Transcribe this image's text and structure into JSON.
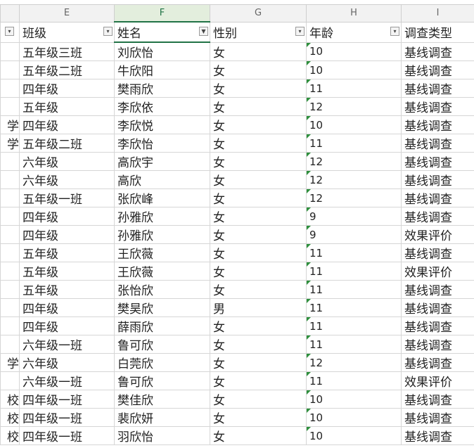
{
  "columns": [
    "E",
    "F",
    "G",
    "H",
    "I"
  ],
  "table": {
    "header": [
      "班级",
      "姓名",
      "性别",
      "年龄",
      "调查类型"
    ],
    "rows": [
      {
        "cells": [
          "五年级三班",
          "刘欣怡",
          "女",
          10,
          "基线调查"
        ]
      },
      {
        "cells": [
          "五年级二班",
          "牛欣阳",
          "女",
          10,
          "基线调查"
        ]
      },
      {
        "cells": [
          "四年级",
          "樊雨欣",
          "女",
          11,
          "基线调查"
        ]
      },
      {
        "cells": [
          "五年级",
          "李欣依",
          "女",
          12,
          "基线调查"
        ]
      },
      {
        "clipped": "学",
        "cells": [
          "四年级",
          "李欣悦",
          "女",
          10,
          "基线调查"
        ]
      },
      {
        "clipped": "学",
        "cells": [
          "五年级二班",
          "李欣怡",
          "女",
          11,
          "基线调查"
        ]
      },
      {
        "cells": [
          "六年级",
          "高欣宇",
          "女",
          12,
          "基线调查"
        ]
      },
      {
        "cells": [
          "六年级",
          "高欣",
          "女",
          12,
          "基线调查"
        ]
      },
      {
        "cells": [
          "五年级一班",
          "张欣峰",
          "女",
          12,
          "基线调查"
        ]
      },
      {
        "cells": [
          "四年级",
          "孙雅欣",
          "女",
          9,
          "基线调查"
        ]
      },
      {
        "cells": [
          "四年级",
          "孙雅欣",
          "女",
          9,
          "效果评价"
        ]
      },
      {
        "cells": [
          "五年级",
          "王欣薇",
          "女",
          11,
          "基线调查"
        ]
      },
      {
        "cells": [
          "五年级",
          "王欣薇",
          "女",
          11,
          "效果评价"
        ]
      },
      {
        "cells": [
          "五年级",
          "张怡欣",
          "女",
          11,
          "基线调查"
        ]
      },
      {
        "cells": [
          "四年级",
          "樊昊欣",
          "男",
          11,
          "基线调查"
        ]
      },
      {
        "cells": [
          "四年级",
          "薛雨欣",
          "女",
          11,
          "基线调查"
        ]
      },
      {
        "cells": [
          "六年级一班",
          "鲁可欣",
          "女",
          11,
          "基线调查"
        ]
      },
      {
        "clipped": "学",
        "cells": [
          "六年级",
          "白莞欣",
          "女",
          12,
          "基线调查"
        ]
      },
      {
        "cells": [
          "六年级一班",
          "鲁可欣",
          "女",
          11,
          "效果评价"
        ]
      },
      {
        "clipped": "校",
        "cells": [
          "四年级一班",
          "樊佳欣",
          "女",
          10,
          "基线调查"
        ]
      },
      {
        "clipped": "校",
        "cells": [
          "四年级一班",
          "裴欣妍",
          "女",
          10,
          "基线调查"
        ]
      },
      {
        "clipped": "校",
        "cells": [
          "四年级一班",
          "羽欣怡",
          "女",
          10,
          "基线调查"
        ]
      }
    ]
  }
}
